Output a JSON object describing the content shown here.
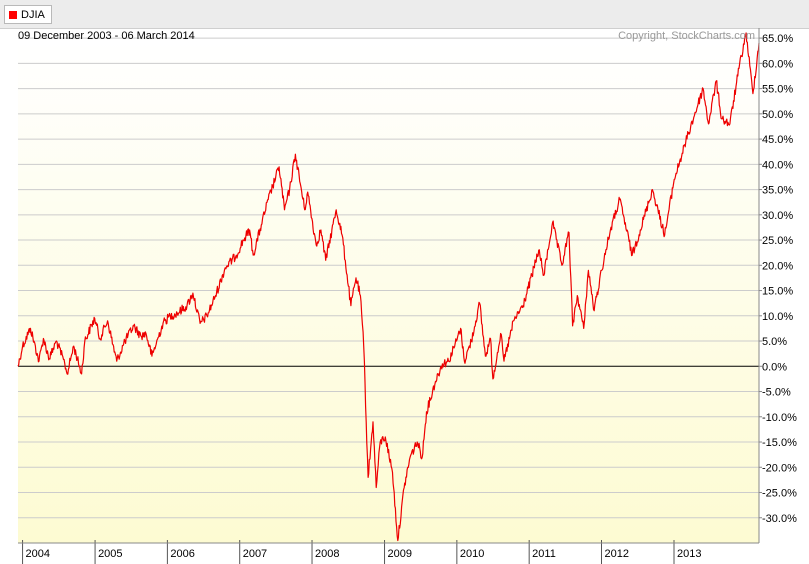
{
  "legend": {
    "label": "DJIA",
    "color": "#ff0000"
  },
  "header": {
    "date_range": "09 December 2003 - 06 March 2014",
    "copyright": "Copyright, StockCharts.com"
  },
  "colors": {
    "line": "#ee0000",
    "plot_top": "#ffffff",
    "plot_bottom": "#fdfbd2",
    "grid": "#cccccc",
    "zero_line": "#000000"
  },
  "chart_data": {
    "type": "line",
    "series": [
      {
        "name": "DJIA",
        "points": [
          [
            "2003-12-09",
            0.0
          ],
          [
            "2004-01-01",
            4.0
          ],
          [
            "2004-02-10",
            7.5
          ],
          [
            "2004-03-24",
            1.0
          ],
          [
            "2004-04-15",
            5.5
          ],
          [
            "2004-05-15",
            1.5
          ],
          [
            "2004-06-20",
            5.0
          ],
          [
            "2004-08-01",
            0.5
          ],
          [
            "2004-08-13",
            -1.5
          ],
          [
            "2004-09-15",
            4.0
          ],
          [
            "2004-10-25",
            -1.5
          ],
          [
            "2004-11-10",
            5.0
          ],
          [
            "2004-12-30",
            9.5
          ],
          [
            "2005-01-25",
            5.5
          ],
          [
            "2005-03-05",
            9.0
          ],
          [
            "2005-04-20",
            1.0
          ],
          [
            "2005-06-01",
            5.0
          ],
          [
            "2005-07-15",
            8.0
          ],
          [
            "2005-08-20",
            6.0
          ],
          [
            "2005-09-15",
            6.5
          ],
          [
            "2005-10-15",
            2.0
          ],
          [
            "2005-12-10",
            8.5
          ],
          [
            "2006-01-15",
            10.0
          ],
          [
            "2006-02-20",
            10.5
          ],
          [
            "2006-04-10",
            12.0
          ],
          [
            "2006-05-10",
            14.5
          ],
          [
            "2006-06-15",
            8.5
          ],
          [
            "2006-07-20",
            10.0
          ],
          [
            "2006-09-01",
            14.0
          ],
          [
            "2006-10-20",
            19.5
          ],
          [
            "2006-12-15",
            22.0
          ],
          [
            "2007-01-20",
            25.0
          ],
          [
            "2007-02-20",
            27.0
          ],
          [
            "2007-03-10",
            22.0
          ],
          [
            "2007-04-20",
            28.0
          ],
          [
            "2007-05-25",
            33.0
          ],
          [
            "2007-07-19",
            39.5
          ],
          [
            "2007-08-15",
            31.0
          ],
          [
            "2007-09-10",
            35.0
          ],
          [
            "2007-10-09",
            42.0
          ],
          [
            "2007-11-25",
            31.0
          ],
          [
            "2007-12-10",
            34.5
          ],
          [
            "2008-01-22",
            24.0
          ],
          [
            "2008-02-15",
            27.0
          ],
          [
            "2008-03-10",
            21.0
          ],
          [
            "2008-05-02",
            31.0
          ],
          [
            "2008-06-01",
            26.0
          ],
          [
            "2008-07-15",
            12.0
          ],
          [
            "2008-08-10",
            17.5
          ],
          [
            "2008-09-01",
            14.0
          ],
          [
            "2008-09-18",
            4.0
          ],
          [
            "2008-10-10",
            -22.0
          ],
          [
            "2008-11-04",
            -11.0
          ],
          [
            "2008-11-20",
            -24.0
          ],
          [
            "2008-12-10",
            -15.0
          ],
          [
            "2009-01-05",
            -14.0
          ],
          [
            "2009-02-10",
            -21.0
          ],
          [
            "2009-03-09",
            -34.5
          ],
          [
            "2009-04-10",
            -24.0
          ],
          [
            "2009-05-10",
            -18.0
          ],
          [
            "2009-06-15",
            -15.0
          ],
          [
            "2009-07-10",
            -18.0
          ],
          [
            "2009-08-01",
            -9.0
          ],
          [
            "2009-09-15",
            -3.0
          ],
          [
            "2009-10-20",
            0.5
          ],
          [
            "2009-11-20",
            1.0
          ],
          [
            "2009-12-30",
            5.0
          ],
          [
            "2010-01-20",
            7.5
          ],
          [
            "2010-02-08",
            1.0
          ],
          [
            "2010-03-15",
            5.0
          ],
          [
            "2010-04-26",
            12.5
          ],
          [
            "2010-05-25",
            2.0
          ],
          [
            "2010-06-20",
            5.5
          ],
          [
            "2010-07-02",
            -2.5
          ],
          [
            "2010-08-10",
            6.5
          ],
          [
            "2010-08-27",
            1.0
          ],
          [
            "2010-10-15",
            9.0
          ],
          [
            "2010-12-01",
            12.0
          ],
          [
            "2011-01-15",
            18.0
          ],
          [
            "2011-02-18",
            23.0
          ],
          [
            "2011-03-16",
            18.0
          ],
          [
            "2011-04-29",
            28.5
          ],
          [
            "2011-06-15",
            20.0
          ],
          [
            "2011-07-21",
            26.5
          ],
          [
            "2011-08-08",
            8.0
          ],
          [
            "2011-09-01",
            14.0
          ],
          [
            "2011-10-03",
            7.5
          ],
          [
            "2011-10-27",
            19.0
          ],
          [
            "2011-11-25",
            11.0
          ],
          [
            "2012-01-01",
            19.0
          ],
          [
            "2012-02-15",
            27.0
          ],
          [
            "2012-04-02",
            33.0
          ],
          [
            "2012-06-04",
            22.0
          ],
          [
            "2012-07-15",
            27.0
          ],
          [
            "2012-09-14",
            35.0
          ],
          [
            "2012-11-15",
            26.0
          ],
          [
            "2013-01-02",
            37.0
          ],
          [
            "2013-03-14",
            46.0
          ],
          [
            "2013-05-28",
            55.0
          ],
          [
            "2013-06-24",
            48.0
          ],
          [
            "2013-08-02",
            56.5
          ],
          [
            "2013-08-30",
            49.0
          ],
          [
            "2013-10-10",
            48.0
          ],
          [
            "2013-11-25",
            59.0
          ],
          [
            "2013-12-31",
            66.0
          ],
          [
            "2014-02-03",
            54.0
          ],
          [
            "2014-03-06",
            64.0
          ]
        ]
      }
    ],
    "x_ticks": [
      {
        "date": "2004-01-01",
        "label": "2004"
      },
      {
        "date": "2005-01-01",
        "label": "2005"
      },
      {
        "date": "2006-01-01",
        "label": "2006"
      },
      {
        "date": "2007-01-01",
        "label": "2007"
      },
      {
        "date": "2008-01-01",
        "label": "2008"
      },
      {
        "date": "2009-01-01",
        "label": "2009"
      },
      {
        "date": "2010-01-01",
        "label": "2010"
      },
      {
        "date": "2011-01-01",
        "label": "2011"
      },
      {
        "date": "2012-01-01",
        "label": "2012"
      },
      {
        "date": "2013-01-01",
        "label": "2013"
      }
    ],
    "y_ticks": [
      65,
      60,
      55,
      50,
      45,
      40,
      35,
      30,
      25,
      20,
      15,
      10,
      5,
      0,
      -5,
      -10,
      -15,
      -20,
      -25,
      -30
    ],
    "y_tick_labels": [
      "65.0%",
      "60.0%",
      "55.0%",
      "50.0%",
      "45.0%",
      "40.0%",
      "35.0%",
      "30.0%",
      "25.0%",
      "20.0%",
      "15.0%",
      "10.0%",
      "5.0%",
      "0.0%",
      "-5.0%",
      "-10.0%",
      "-15.0%",
      "-20.0%",
      "-25.0%",
      "-30.0%"
    ],
    "xlim": [
      "2003-12-09",
      "2014-03-06"
    ],
    "ylim": [
      -35,
      67
    ],
    "grid": true,
    "y_axis_position": "right",
    "legend_position": "top-left"
  }
}
